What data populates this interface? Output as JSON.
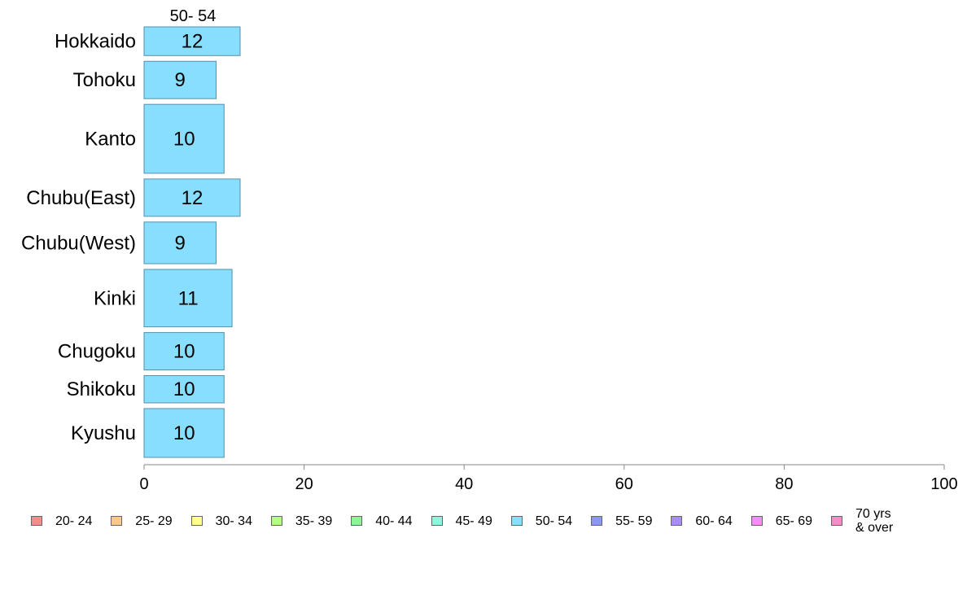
{
  "chart_data": {
    "type": "bar",
    "orientation": "horizontal",
    "stacked": true,
    "series_title": "50- 54",
    "categories": [
      "Hokkaido",
      "Tohoku",
      "Kanto",
      "Chubu(East)",
      "Chubu(West)",
      "Kinki",
      "Chugoku",
      "Shikoku",
      "Kyushu"
    ],
    "series": [
      {
        "name": "50- 54",
        "values": [
          12,
          9,
          10,
          12,
          9,
          11,
          10,
          10,
          10
        ],
        "color": "#87DEFF"
      }
    ],
    "category_band_weights": [
      1.0,
      1.3,
      2.4,
      1.3,
      1.45,
      2.0,
      1.3,
      0.95,
      1.7
    ],
    "xlim": [
      0,
      100
    ],
    "xticks": [
      "0",
      "20",
      "40",
      "60",
      "80",
      "100"
    ],
    "grid": false,
    "legend_position": "bottom",
    "legend": [
      {
        "label": "20- 24",
        "color": "#F58C8C"
      },
      {
        "label": "25- 29",
        "color": "#FFC88C"
      },
      {
        "label": "30- 34",
        "color": "#FFFF8C"
      },
      {
        "label": "35- 39",
        "color": "#B4FF82"
      },
      {
        "label": "40- 44",
        "color": "#8CF596"
      },
      {
        "label": "45- 49",
        "color": "#8CF5DC"
      },
      {
        "label": "50- 54",
        "color": "#87DEFF"
      },
      {
        "label": "55- 59",
        "color": "#8C96F5"
      },
      {
        "label": "60- 64",
        "color": "#AA8CF5"
      },
      {
        "label": "65- 69",
        "color": "#F58CF5"
      },
      {
        "label": "70 yrs\n& over",
        "color": "#F58CC8"
      }
    ]
  }
}
